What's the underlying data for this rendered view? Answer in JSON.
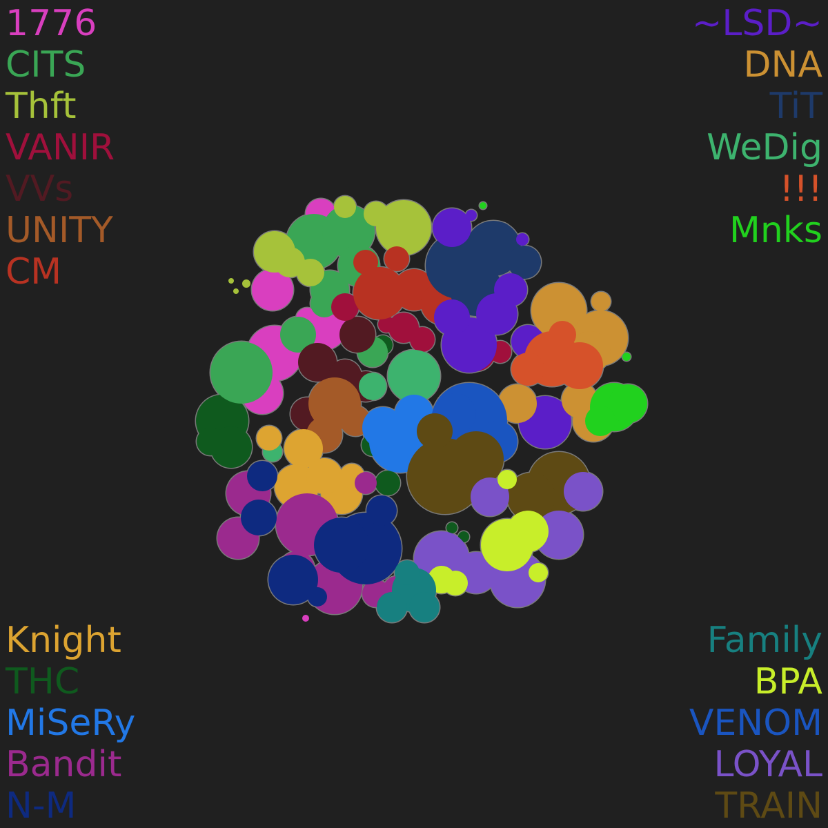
{
  "legend": {
    "top_left": [
      {
        "label": "1776",
        "color": "#d93fbf"
      },
      {
        "label": "CITS",
        "color": "#3aa655"
      },
      {
        "label": "Thft",
        "color": "#a6c23a"
      },
      {
        "label": "VANIR",
        "color": "#a0103c"
      },
      {
        "label": "VVs",
        "color": "#521a22"
      },
      {
        "label": "UNITY",
        "color": "#a45a28"
      },
      {
        "label": "CM",
        "color": "#b83222"
      }
    ],
    "top_right": [
      {
        "label": "~LSD~",
        "color": "#5b1ec8"
      },
      {
        "label": "DNA",
        "color": "#cc9133"
      },
      {
        "label": "TiT",
        "color": "#1e3a6a"
      },
      {
        "label": "WeDig",
        "color": "#3db36e"
      },
      {
        "label": "!!!",
        "color": "#d6522a"
      },
      {
        "label": "Mnks",
        "color": "#21d11e"
      }
    ],
    "bottom_left": [
      {
        "label": "Knight",
        "color": "#dda431"
      },
      {
        "label": "THC",
        "color": "#0f5a1e"
      },
      {
        "label": "MiSeRy",
        "color": "#2278e6"
      },
      {
        "label": "Bandit",
        "color": "#9b2a8e"
      },
      {
        "label": "N-M",
        "color": "#0e2a80"
      }
    ],
    "bottom_right": [
      {
        "label": "Family",
        "color": "#178080"
      },
      {
        "label": "BPA",
        "color": "#c8ee2a"
      },
      {
        "label": "VENOM",
        "color": "#1a55c0"
      },
      {
        "label": "LOYAL",
        "color": "#7a52c8"
      },
      {
        "label": "TRAIN",
        "color": "#5e4a14"
      }
    ]
  },
  "map": {
    "background": "#202020",
    "border_color": "#7a7a7a"
  }
}
